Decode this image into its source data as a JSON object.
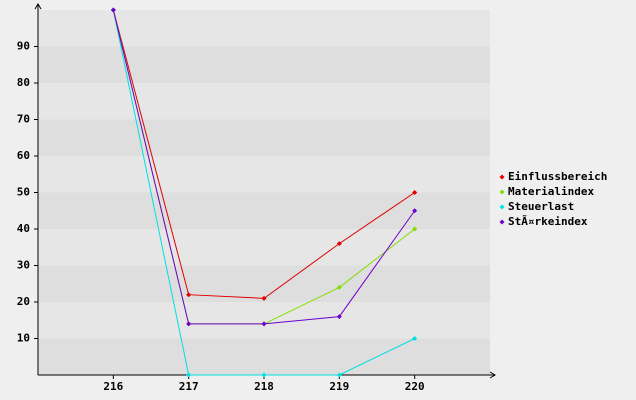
{
  "chart_data": {
    "type": "line",
    "categories": [
      "216",
      "217",
      "218",
      "219",
      "220"
    ],
    "series": [
      {
        "name": "Einflussbereich",
        "color": "#e00000",
        "values": [
          100,
          22,
          21,
          36,
          50
        ]
      },
      {
        "name": "Materialindex",
        "color": "#80e000",
        "values": [
          100,
          14,
          14,
          24,
          40
        ]
      },
      {
        "name": "Steuerlast",
        "color": "#00e0e0",
        "values": [
          100,
          0,
          0,
          0,
          10
        ]
      },
      {
        "name": "StÃ¤rkeindex",
        "color": "#7000d0",
        "values": [
          100,
          14,
          14,
          16,
          45
        ]
      }
    ],
    "ylim": [
      0,
      100
    ],
    "yticks": [
      10,
      20,
      30,
      40,
      50,
      60,
      70,
      80,
      90
    ],
    "grid": true,
    "legend": "right"
  }
}
